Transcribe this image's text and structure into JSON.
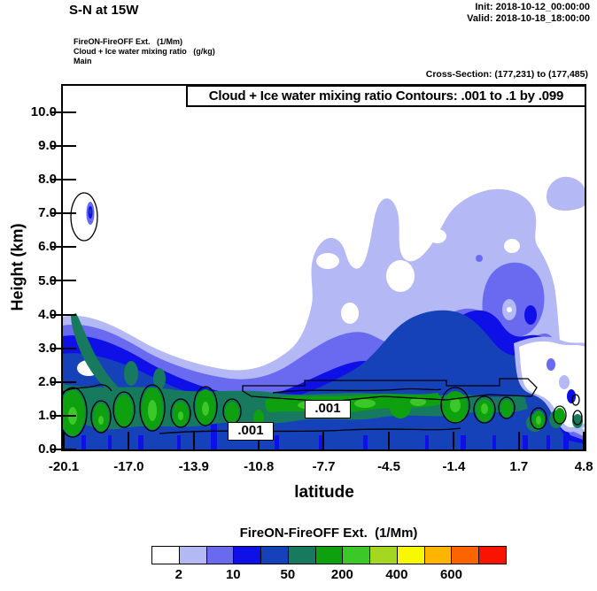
{
  "header": {
    "title": "S-N at 15W",
    "init": "Init: 2018-10-12_00:00:00",
    "valid": "Valid: 2018-10-18_18:00:00",
    "run_lines": "FireON-FireOFF Ext.   (1/Mm)\nCloud + Ice water mixing ratio   (g/kg)\nMain",
    "cross_section": "Cross-Section: (177,231) to (177,485)"
  },
  "plot": {
    "inner_title": "Cloud + Ice water mixing ratio Contours: .001 to .1 by .099",
    "xlabel": "latitude",
    "ylabel": "Height (km)",
    "contour_label_1": ".001",
    "contour_label_2": ".001"
  },
  "colorbar": {
    "title": "FireON-FireOFF Ext.  (1/Mm)",
    "labels": [
      "2",
      "10",
      "50",
      "200",
      "400",
      "600"
    ],
    "colors": [
      "#ffffff",
      "#b4b8f4",
      "#6a6af0",
      "#0f0fe8",
      "#1542b8",
      "#177a5e",
      "#0fa00f",
      "#3cc828",
      "#a4d820",
      "#f8f800",
      "#ffb400",
      "#fc6400",
      "#f81400"
    ]
  },
  "chart_data": {
    "type": "filled_contour_cross_section",
    "title": "S-N at 15W",
    "xlabel": "latitude",
    "ylabel": "Height (km)",
    "x_ticks": [
      -20.1,
      -17.0,
      -13.9,
      -10.8,
      -7.7,
      -4.5,
      -1.4,
      1.7,
      4.8
    ],
    "x_tick_labels": [
      "-20.1",
      "-17.0",
      "-13.9",
      "-10.8",
      "-7.7",
      "-4.5",
      "-1.4",
      "1.7",
      "4.8"
    ],
    "y_ticks": [
      0,
      1,
      2,
      3,
      4,
      5,
      6,
      7,
      8,
      9,
      10
    ],
    "y_tick_labels": [
      "0.0",
      "1.0",
      "2.0",
      "3.0",
      "4.0",
      "5.0",
      "6.0",
      "7.0",
      "8.0",
      "9.0",
      "10.0"
    ],
    "xlim": [
      -20.1,
      4.8
    ],
    "ylim_km": [
      0,
      10.8
    ],
    "grid": false,
    "shaded_field": {
      "name": "FireON-FireOFF Ext. (1/Mm)",
      "colorbar_labels": [
        2,
        10,
        50,
        200,
        400,
        600
      ],
      "palette": [
        "#ffffff",
        "#b4b8f4",
        "#6a6af0",
        "#0f0fe8",
        "#1542b8",
        "#177a5e",
        "#0fa00f",
        "#3cc828",
        "#a4d820",
        "#f8f800",
        "#ffb400",
        "#fc6400",
        "#f81400"
      ],
      "description": "Blue shading fills the lowest 0-4 km across the whole section; darkest navy core (50-200 1/Mm) lies near latitudes -6 to 0 at 1.5-3.5 km; teal and green maxima (200-400 1/Mm) hug 0.5-1.5 km along the section; light periwinkle plumes (2-10 1/Mm) reach 7-8 km over the right half (latitudes -6 to 4.8)."
    },
    "contour_field": {
      "name": "Cloud + Ice water mixing ratio (g/kg)",
      "levels": [
        0.001,
        0.1
      ],
      "levels_note": ".001 to .1 by .099",
      "description": "The .001 g/kg contour outlines shallow cloud patches at 0.5-1.5 km along most of the section plus a small lens near 7 km at latitude -19.2."
    },
    "annotations": {
      "init": "2018-10-12_00:00:00",
      "valid": "2018-10-18_18:00:00",
      "cross_section": "(177,231) to (177,485)"
    }
  }
}
